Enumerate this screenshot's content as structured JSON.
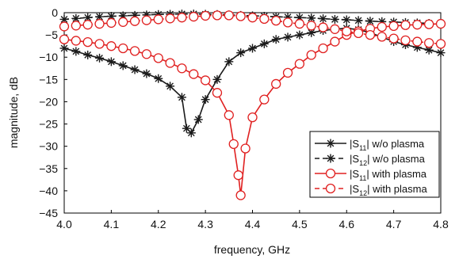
{
  "chart_data": {
    "type": "line",
    "xlabel": "frequency, GHz",
    "ylabel": "magnitude, dB",
    "xlim": [
      4.0,
      4.8
    ],
    "ylim": [
      -45,
      0
    ],
    "xticks": [
      4.0,
      4.1,
      4.2,
      4.3,
      4.4,
      4.5,
      4.6,
      4.7,
      4.8
    ],
    "xtick_labels": [
      "4.0",
      "4.1",
      "4.2",
      "4.3",
      "4.4",
      "4.5",
      "4.6",
      "4.7",
      "4.8"
    ],
    "yticks": [
      0,
      -5,
      -10,
      -15,
      -20,
      -25,
      -30,
      -35,
      -40,
      -45
    ],
    "ytick_labels": [
      "0",
      "−5",
      "−10",
      "−15",
      "−20",
      "−25",
      "−30",
      "−35",
      "−40",
      "−45"
    ],
    "grid": false,
    "legend_position": "bottom-right",
    "series": [
      {
        "name": "|S11| w/o plasma",
        "legend_pre": "|S",
        "legend_sub": "11",
        "legend_post": "| w/o plasma",
        "color": "#1a1a1a",
        "line_style": "solid",
        "marker": "asterisk",
        "x": [
          4.0,
          4.025,
          4.05,
          4.075,
          4.1,
          4.125,
          4.15,
          4.175,
          4.2,
          4.225,
          4.25,
          4.26,
          4.27,
          4.285,
          4.3,
          4.325,
          4.35,
          4.375,
          4.4,
          4.425,
          4.45,
          4.475,
          4.5,
          4.525,
          4.55,
          4.575,
          4.6,
          4.625,
          4.65,
          4.675,
          4.7,
          4.725,
          4.75,
          4.775,
          4.8
        ],
        "y": [
          -8,
          -8.7,
          -9.5,
          -10.2,
          -11,
          -11.9,
          -12.8,
          -13.7,
          -14.8,
          -16.5,
          -19,
          -26,
          -27,
          -24,
          -19.5,
          -15,
          -11,
          -9,
          -8,
          -7,
          -6,
          -5.5,
          -5,
          -4.5,
          -4,
          -3.7,
          -3.5,
          -3.8,
          -4.5,
          -5.5,
          -6.5,
          -7.2,
          -7.8,
          -8.4,
          -9
        ]
      },
      {
        "name": "|S12| w/o plasma",
        "legend_pre": "|S",
        "legend_sub": "12",
        "legend_post": "| w/o plasma",
        "color": "#1a1a1a",
        "line_style": "dashed",
        "marker": "asterisk",
        "x": [
          4.0,
          4.025,
          4.05,
          4.075,
          4.1,
          4.125,
          4.15,
          4.175,
          4.2,
          4.225,
          4.25,
          4.275,
          4.3,
          4.325,
          4.35,
          4.375,
          4.4,
          4.425,
          4.45,
          4.475,
          4.5,
          4.525,
          4.55,
          4.575,
          4.6,
          4.625,
          4.65,
          4.675,
          4.7,
          4.725,
          4.75,
          4.775,
          4.8
        ],
        "y": [
          -1.5,
          -1.3,
          -1.1,
          -0.9,
          -0.8,
          -0.7,
          -0.6,
          -0.5,
          -0.4,
          -0.35,
          -0.3,
          -0.3,
          -0.35,
          -0.4,
          -0.5,
          -0.6,
          -0.7,
          -0.8,
          -0.9,
          -1.0,
          -1.1,
          -1.2,
          -1.35,
          -1.5,
          -1.6,
          -1.75,
          -1.9,
          -2.0,
          -2.1,
          -2.2,
          -2.3,
          -2.4,
          -2.5
        ]
      },
      {
        "name": "|S11| with plasma",
        "legend_pre": "|S",
        "legend_sub": "11",
        "legend_post": "| with plasma",
        "color": "#e02020",
        "line_style": "solid",
        "marker": "circle",
        "x": [
          4.0,
          4.025,
          4.05,
          4.075,
          4.1,
          4.125,
          4.15,
          4.175,
          4.2,
          4.225,
          4.25,
          4.275,
          4.3,
          4.325,
          4.35,
          4.36,
          4.37,
          4.375,
          4.385,
          4.4,
          4.425,
          4.45,
          4.475,
          4.5,
          4.525,
          4.55,
          4.575,
          4.6,
          4.625,
          4.65,
          4.675,
          4.7,
          4.725,
          4.75,
          4.775,
          4.8
        ],
        "y": [
          -6,
          -6.3,
          -6.6,
          -7,
          -7.5,
          -8,
          -8.6,
          -9.3,
          -10.2,
          -11.3,
          -12.5,
          -13.8,
          -15.2,
          -18,
          -23,
          -29.5,
          -36.5,
          -41,
          -30.5,
          -23.5,
          -19.5,
          -16,
          -13.5,
          -11.5,
          -9.5,
          -8,
          -6.5,
          -5,
          -4.2,
          -3.6,
          -3.2,
          -3,
          -2.8,
          -2.7,
          -2.6,
          -2.5
        ]
      },
      {
        "name": "|S12| with plasma",
        "legend_pre": "|S",
        "legend_sub": "12",
        "legend_post": "| with plasma",
        "color": "#e02020",
        "line_style": "dashed",
        "marker": "circle",
        "x": [
          4.0,
          4.025,
          4.05,
          4.075,
          4.1,
          4.125,
          4.15,
          4.175,
          4.2,
          4.225,
          4.25,
          4.275,
          4.3,
          4.325,
          4.35,
          4.375,
          4.4,
          4.425,
          4.45,
          4.475,
          4.5,
          4.525,
          4.55,
          4.575,
          4.6,
          4.625,
          4.65,
          4.675,
          4.7,
          4.725,
          4.75,
          4.775,
          4.8
        ],
        "y": [
          -3.1,
          -2.9,
          -2.7,
          -2.5,
          -2.3,
          -2.1,
          -1.9,
          -1.7,
          -1.5,
          -1.3,
          -1.1,
          -0.9,
          -0.7,
          -0.6,
          -0.6,
          -0.8,
          -1.1,
          -1.4,
          -1.8,
          -2.2,
          -2.5,
          -2.9,
          -3.3,
          -3.7,
          -4.2,
          -4.6,
          -5.0,
          -5.4,
          -5.8,
          -6.2,
          -6.5,
          -6.8,
          -7.0
        ]
      }
    ]
  }
}
